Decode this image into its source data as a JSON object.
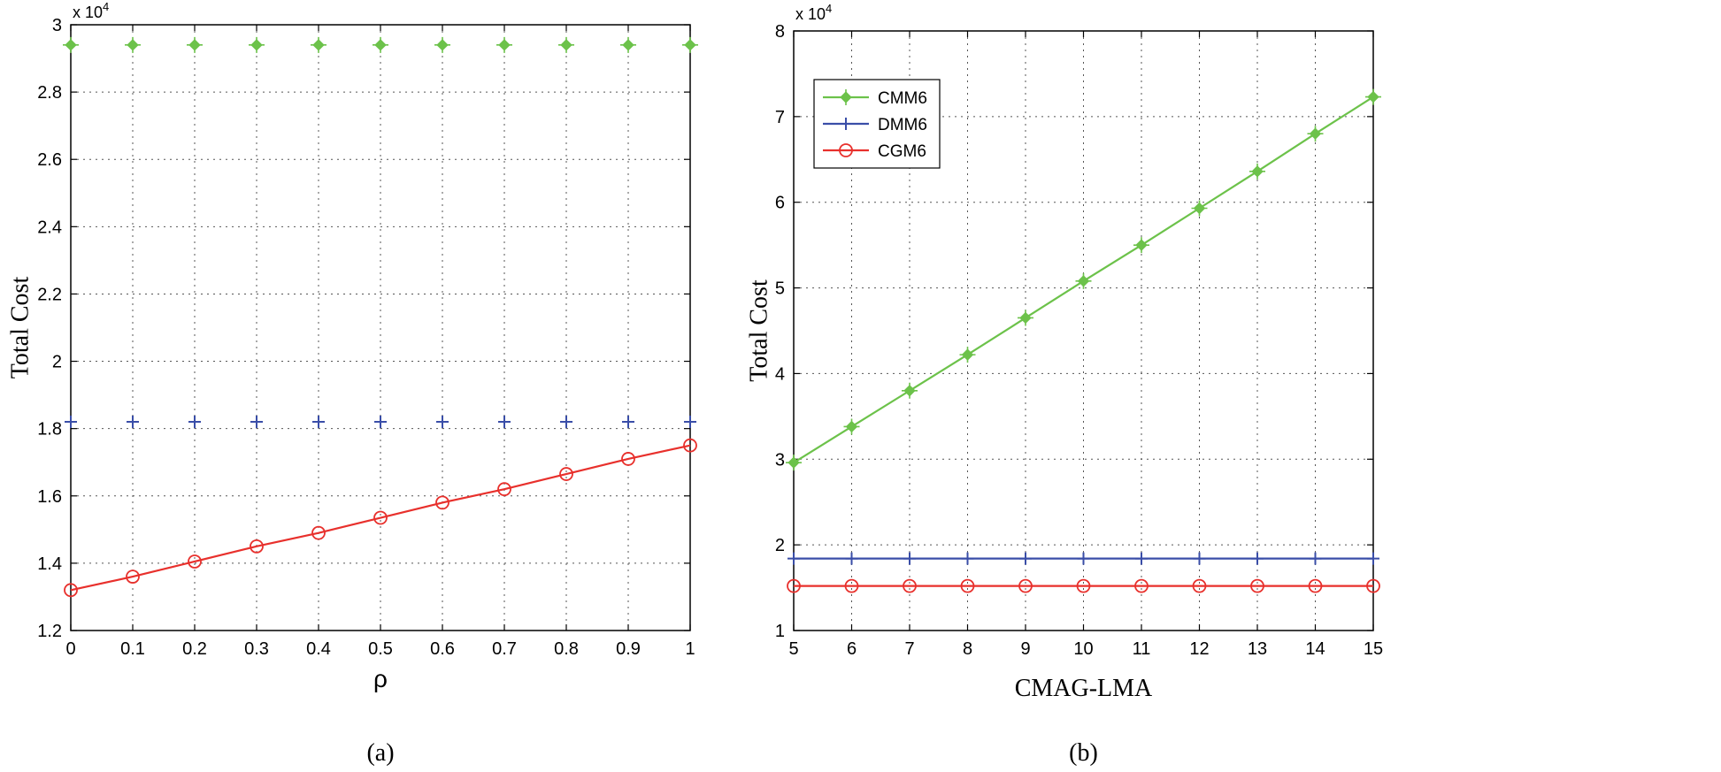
{
  "chart_data": [
    {
      "type": "line",
      "panel_caption": "(a)",
      "title": "",
      "xlabel": "ρ",
      "ylabel": "Total Cost",
      "y_exponent_label": "x 10",
      "y_exponent_power": "4",
      "xlim": [
        0,
        1
      ],
      "ylim": [
        1.2,
        3.0
      ],
      "grid": true,
      "x": [
        0,
        0.1,
        0.2,
        0.3,
        0.4,
        0.5,
        0.6,
        0.7,
        0.8,
        0.9,
        1
      ],
      "x_tick_labels": [
        "0",
        "0.1",
        "0.2",
        "0.3",
        "0.4",
        "0.5",
        "0.6",
        "0.7",
        "0.8",
        "0.9",
        "1"
      ],
      "y_ticks": [
        1.2,
        1.4,
        1.6,
        1.8,
        2.0,
        2.2,
        2.4,
        2.6,
        2.8,
        3.0
      ],
      "y_tick_labels": [
        "1.2",
        "1.4",
        "1.6",
        "1.8",
        "2",
        "2.2",
        "2.4",
        "2.6",
        "2.8",
        "3"
      ],
      "series": [
        {
          "name": "CMM6",
          "color": "#6cc24a",
          "marker": "diamond-star",
          "line": false,
          "values": [
            2.94,
            2.94,
            2.94,
            2.94,
            2.94,
            2.94,
            2.94,
            2.94,
            2.94,
            2.94,
            2.94
          ]
        },
        {
          "name": "DMM6",
          "color": "#3a4ea8",
          "marker": "plus",
          "line": false,
          "values": [
            1.82,
            1.82,
            1.82,
            1.82,
            1.82,
            1.82,
            1.82,
            1.82,
            1.82,
            1.82,
            1.82
          ]
        },
        {
          "name": "CGM6",
          "color": "#e8302c",
          "marker": "circle",
          "line": true,
          "values": [
            1.32,
            1.36,
            1.405,
            1.45,
            1.49,
            1.535,
            1.58,
            1.62,
            1.665,
            1.71,
            1.75
          ]
        }
      ]
    },
    {
      "type": "line",
      "panel_caption": "(b)",
      "title": "",
      "xlabel": "CMAG-LMA",
      "ylabel": "Total Cost",
      "y_exponent_label": "x 10",
      "y_exponent_power": "4",
      "xlim": [
        5,
        15
      ],
      "ylim": [
        1,
        8
      ],
      "grid": true,
      "legend_position": "top-left",
      "x": [
        5,
        6,
        7,
        8,
        9,
        10,
        11,
        12,
        13,
        14,
        15
      ],
      "x_tick_labels": [
        "5",
        "6",
        "7",
        "8",
        "9",
        "10",
        "11",
        "12",
        "13",
        "14",
        "15"
      ],
      "y_ticks": [
        1,
        2,
        3,
        4,
        5,
        6,
        7,
        8
      ],
      "y_tick_labels": [
        "1",
        "2",
        "3",
        "4",
        "5",
        "6",
        "7",
        "8"
      ],
      "series": [
        {
          "name": "CMM6",
          "color": "#6cc24a",
          "marker": "diamond-star",
          "line": true,
          "values": [
            2.96,
            3.38,
            3.8,
            4.22,
            4.65,
            5.08,
            5.5,
            5.93,
            6.36,
            6.8,
            7.23
          ]
        },
        {
          "name": "DMM6",
          "color": "#3a4ea8",
          "marker": "plus",
          "line": true,
          "values": [
            1.84,
            1.84,
            1.84,
            1.84,
            1.84,
            1.84,
            1.84,
            1.84,
            1.84,
            1.84,
            1.84
          ]
        },
        {
          "name": "CGM6",
          "color": "#e8302c",
          "marker": "circle",
          "line": true,
          "values": [
            1.52,
            1.52,
            1.52,
            1.52,
            1.52,
            1.52,
            1.52,
            1.52,
            1.52,
            1.52,
            1.52
          ]
        }
      ]
    }
  ]
}
